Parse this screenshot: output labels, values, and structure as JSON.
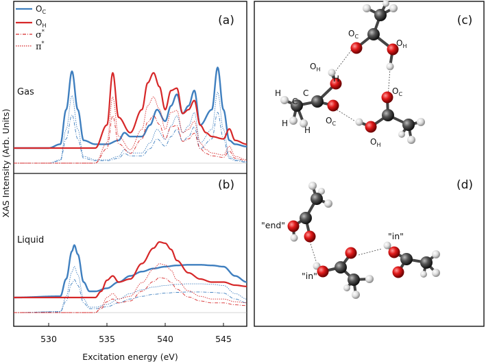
{
  "chart_data": {
    "type": "line",
    "xlabel": "Excitation energy (eV)",
    "ylabel": "XAS Intensity (Arb. Units)",
    "xlim": [
      527,
      547
    ],
    "xticks": [
      530,
      535,
      540,
      545
    ],
    "legend": {
      "placement": "top-left",
      "entries": [
        {
          "main": "O",
          "sub": "C",
          "style": "solid",
          "color": "#3f7fbf"
        },
        {
          "main": "O",
          "sub": "H",
          "style": "solid",
          "color": "#d62728"
        },
        {
          "main": "σ",
          "sup": "*",
          "style": "dashdot",
          "color": "#d62728"
        },
        {
          "main": "π",
          "sup": "*",
          "style": "dotted",
          "color": "#d62728"
        }
      ]
    },
    "panels": [
      {
        "tag": "(a)",
        "label": "Gas",
        "series": [
          {
            "key": "OC",
            "style": "solid",
            "color": "#3f7fbf",
            "x": [
              527,
              530,
              531,
              531.5,
              532,
              532.5,
              533,
              534,
              535,
              536,
              536.5,
              537,
              538,
              538.7,
              539.3,
              540,
              540.5,
              541,
              541.5,
              542,
              542.5,
              543,
              544,
              544.5,
              545,
              545.5,
              546,
              547
            ],
            "y": [
              0,
              0,
              0.05,
              0.5,
              1.0,
              0.5,
              0.1,
              0.05,
              0.05,
              0.1,
              0.2,
              0.15,
              0.15,
              0.3,
              0.5,
              0.35,
              0.55,
              0.7,
              0.45,
              0.55,
              0.75,
              0.3,
              0.5,
              1.05,
              0.5,
              0.1,
              0.05,
              0.02
            ]
          },
          {
            "key": "OH",
            "style": "solid",
            "color": "#d62728",
            "x": [
              527,
              532,
              533,
              534,
              535,
              535.5,
              536,
              537,
              538,
              538.5,
              539,
              539.5,
              540,
              540.5,
              541,
              541.5,
              542,
              542.5,
              543,
              543.5,
              544,
              545,
              545.5,
              546,
              547
            ],
            "y": [
              0,
              0,
              0,
              0,
              0.3,
              0.98,
              0.4,
              0.2,
              0.5,
              0.85,
              0.98,
              0.8,
              0.5,
              0.75,
              0.78,
              0.45,
              0.5,
              0.62,
              0.3,
              0.2,
              0.15,
              0.12,
              0.25,
              0.1,
              0.05
            ]
          }
        ]
      },
      {
        "tag": "(b)",
        "label": "Liquid",
        "series": [
          {
            "key": "OC",
            "style": "solid",
            "color": "#3f7fbf",
            "x": [
              527,
              531,
              531.5,
              532,
              532.2,
              532.5,
              533,
              533.5,
              534,
              535,
              536,
              537,
              538,
              539,
              540,
              541,
              542,
              543,
              544,
              545,
              546,
              547
            ],
            "y": [
              0,
              0.02,
              0.3,
              0.75,
              0.85,
              0.7,
              0.25,
              0.1,
              0.1,
              0.15,
              0.25,
              0.35,
              0.42,
              0.47,
              0.5,
              0.52,
              0.53,
              0.53,
              0.52,
              0.5,
              0.35,
              0.25
            ]
          },
          {
            "key": "OH",
            "style": "solid",
            "color": "#d62728",
            "x": [
              527,
              534,
              534.5,
              535,
              535.5,
              536,
              537,
              538,
              539,
              539.5,
              540,
              540.5,
              541,
              542,
              543,
              544,
              545,
              546,
              547
            ],
            "y": [
              0,
              0,
              0.1,
              0.28,
              0.35,
              0.25,
              0.3,
              0.55,
              0.8,
              0.9,
              0.88,
              0.78,
              0.6,
              0.4,
              0.3,
              0.25,
              0.25,
              0.2,
              0.18
            ]
          }
        ]
      }
    ]
  },
  "molecules": {
    "top_tag": "(c)",
    "bottom_tag": "(d)",
    "atom_labels": {
      "oc": "O",
      "oc_sub": "C",
      "oh": "O",
      "oh_sub": "H",
      "h": "H",
      "c": "C"
    },
    "site_labels": {
      "end": "\"end\"",
      "in1": "\"in\"",
      "in2": "\"in\""
    }
  }
}
